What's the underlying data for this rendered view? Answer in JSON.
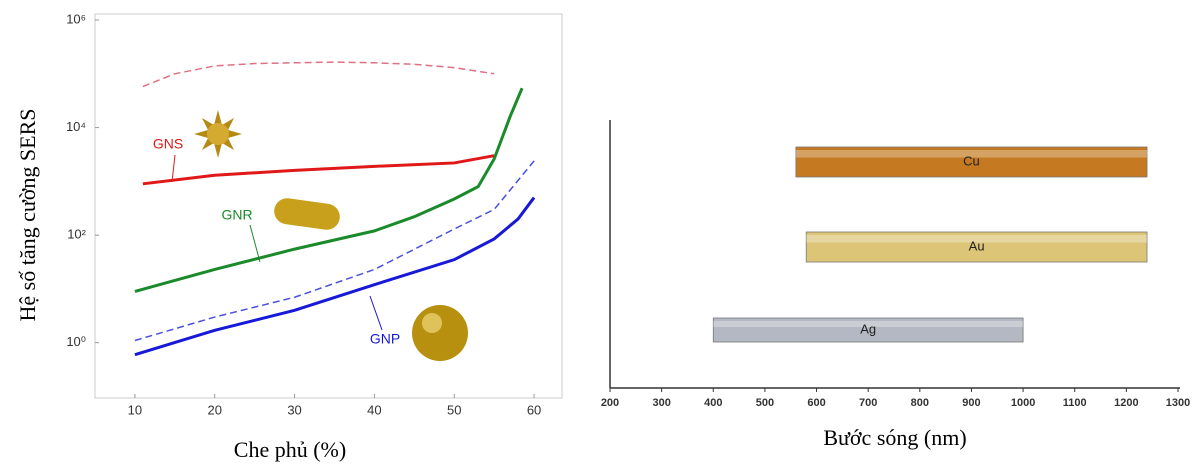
{
  "chart_data": [
    {
      "type": "line",
      "xlabel": "Che phủ (%)",
      "ylabel": "Hệ số tăng cường SERS",
      "xlim": [
        5,
        63.5
      ],
      "xticks": [
        10,
        20,
        30,
        40,
        50,
        60
      ],
      "ylim": [
        0.1,
        1000000
      ],
      "log_y": true,
      "yticks": [
        {
          "value": 1,
          "label": "10⁰"
        },
        {
          "value": 100,
          "label": "10²"
        },
        {
          "value": 10000,
          "label": "10⁴"
        },
        {
          "value": 1000000,
          "label": "10⁶"
        }
      ],
      "series": [
        {
          "color": "#e07080",
          "dashed": true,
          "x": [
            11,
            15,
            20,
            25,
            30,
            35,
            40,
            45,
            50,
            55
          ],
          "values": [
            58000,
            100000,
            140000,
            155000,
            160000,
            165000,
            160000,
            150000,
            130000,
            100000
          ]
        },
        {
          "name": "GNS",
          "color": "#e01818",
          "dashed": false,
          "x": [
            11,
            20,
            30,
            40,
            50,
            55
          ],
          "values": [
            900,
            1300,
            1600,
            1900,
            2200,
            3000
          ]
        },
        {
          "name": "GNR",
          "color": "#1a8a2a",
          "dashed": false,
          "x": [
            10,
            20,
            30,
            40,
            45,
            50,
            53,
            55,
            57,
            58.5
          ],
          "values": [
            9,
            23,
            55,
            120,
            220,
            470,
            800,
            2600,
            16000,
            54000
          ]
        },
        {
          "color": "#4a50e0",
          "dashed": true,
          "x": [
            10,
            20,
            30,
            40,
            50,
            55,
            60
          ],
          "values": [
            1.1,
            3,
            7,
            23,
            130,
            300,
            2400
          ]
        },
        {
          "name": "GNP",
          "color": "#1818d8",
          "dashed": false,
          "x": [
            10,
            20,
            30,
            40,
            50,
            55,
            58,
            60
          ],
          "values": [
            0.6,
            1.7,
            4,
            12,
            35,
            85,
            200,
            500
          ]
        }
      ]
    },
    {
      "type": "range-bar",
      "xlabel": "Bước sóng (nm)",
      "xlim": [
        200,
        1300
      ],
      "xticks": [
        200,
        300,
        400,
        500,
        600,
        700,
        800,
        900,
        1000,
        1100,
        1200,
        1300
      ],
      "categories": [
        "Cu",
        "Au",
        "Ag"
      ],
      "start": [
        560,
        580,
        400
      ],
      "end": [
        1240,
        1240,
        1000
      ],
      "colors": [
        "#c57a22",
        "#dcc577",
        "#b4b8c2"
      ]
    }
  ]
}
